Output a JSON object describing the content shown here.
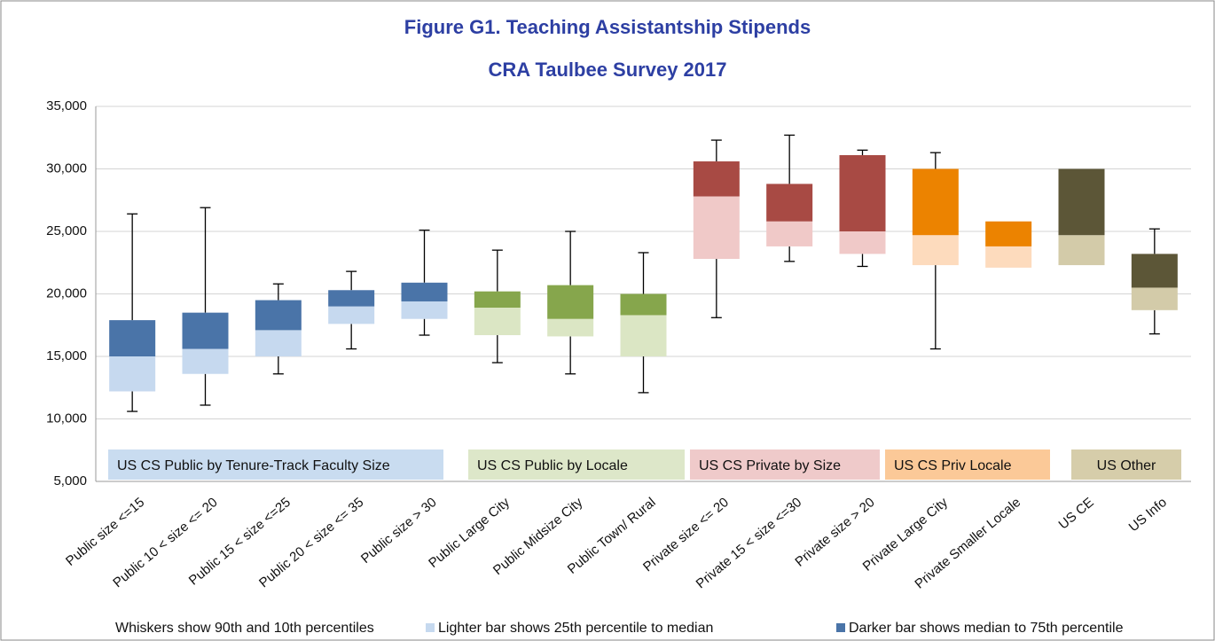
{
  "chart_data": {
    "type": "box",
    "title": "Figure G1. Teaching Assistantship Stipends",
    "subtitle": "CRA Taulbee Survey 2017",
    "categories": [
      "Public size <=15",
      "Public 10 < size <= 20",
      "Public 15 < size <=25",
      "Public 20 < size <= 35",
      "Public size > 30",
      "Public Large City",
      "Public Midsize City",
      "Public Town/ Rural",
      "Private size <= 20",
      "Private 15 < size <=30",
      "Private size > 20",
      "Private Large City",
      "Private Smaller Locale",
      "US CE",
      "US Info"
    ],
    "p90": [
      26400,
      26900,
      20800,
      21800,
      25100,
      23500,
      25000,
      23300,
      32300,
      32700,
      31500,
      31300,
      null,
      null,
      25200
    ],
    "p75": [
      17900,
      18500,
      19500,
      20300,
      20900,
      20200,
      20700,
      20000,
      30600,
      28800,
      31100,
      30000,
      25800,
      30000,
      23200
    ],
    "median": [
      15000,
      15600,
      17100,
      19000,
      19400,
      18900,
      18000,
      18300,
      27800,
      25800,
      25000,
      24700,
      23800,
      24700,
      20500
    ],
    "p25": [
      12200,
      13600,
      15000,
      17600,
      18000,
      16700,
      16600,
      15000,
      22800,
      23800,
      23200,
      22300,
      22100,
      22300,
      18700
    ],
    "p10": [
      10600,
      11100,
      13600,
      15600,
      16700,
      14500,
      13600,
      12100,
      18100,
      22600,
      22200,
      15600,
      null,
      null,
      16800
    ],
    "light_colors": [
      "#c6d9ef",
      "#c6d9ef",
      "#c6d9ef",
      "#c6d9ef",
      "#c6d9ef",
      "#dbe6c4",
      "#dbe6c4",
      "#dbe6c4",
      "#f0c9c8",
      "#f0c9c8",
      "#f0c9c8",
      "#fddbbd",
      "#fddbbd",
      "#d3cba9",
      "#d3cba9"
    ],
    "dark_colors": [
      "#4a74a8",
      "#4a74a8",
      "#4a74a8",
      "#4a74a8",
      "#4a74a8",
      "#86a64c",
      "#86a64c",
      "#86a64c",
      "#a84a44",
      "#a84a44",
      "#a84a44",
      "#ec8300",
      "#ec8300",
      "#5c5637",
      "#5c5637"
    ],
    "groups": [
      {
        "label": "US CS Public by Tenure-Track Faculty Size",
        "color": "#c9dcf0"
      },
      {
        "label": "US CS Public by Locale",
        "color": "#dde7c9"
      },
      {
        "label": "US CS Private by Size",
        "color": "#efcaca"
      },
      {
        "label": "US CS Priv Locale",
        "color": "#fbc998"
      },
      {
        "label": "US Other",
        "color": "#d6cdaa"
      }
    ],
    "ylim": [
      5000,
      35000
    ],
    "yticks": [
      {
        "value": 5000,
        "label": "5,000"
      },
      {
        "value": 10000,
        "label": "10,000"
      },
      {
        "value": 15000,
        "label": "15,000"
      },
      {
        "value": 20000,
        "label": "20,000"
      },
      {
        "value": 25000,
        "label": "25,000"
      },
      {
        "value": 30000,
        "label": "30,000"
      },
      {
        "value": 35000,
        "label": "35,000"
      }
    ],
    "grid": true,
    "notes": [
      "Whiskers show 90th and 10th percentiles",
      "Lighter bar shows 25th percentile to median",
      "Darker bar shows median to 75th percentile"
    ]
  }
}
